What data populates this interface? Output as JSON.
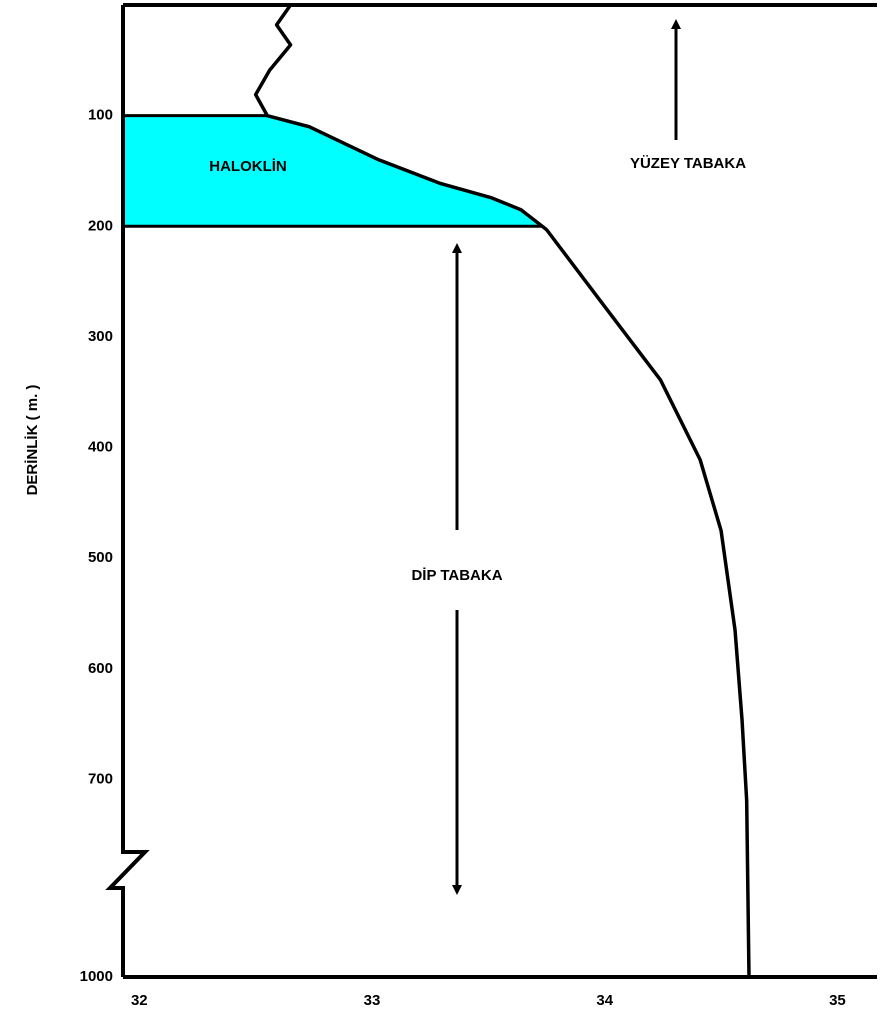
{
  "chart_data": {
    "type": "line",
    "y_axis_label": "DERİNLİK ( m. )",
    "series": [
      {
        "color": "#000000",
        "x": [
          32.65,
          32.59,
          32.65,
          32.56,
          32.5,
          32.55,
          32.73,
          33.03,
          33.29,
          33.51,
          33.64,
          33.75,
          33.98,
          34.24,
          34.41,
          34.5,
          34.56,
          34.59,
          34.61,
          34.62
        ],
        "values": [
          0,
          18,
          36,
          59,
          81,
          100,
          110,
          140,
          161,
          174,
          185,
          203,
          267,
          339,
          411,
          475,
          565,
          646,
          719,
          1000
        ]
      }
    ],
    "xlim": [
      31.93,
      35.17
    ],
    "xticks": [
      32,
      33,
      34,
      35
    ],
    "ylim": [
      0,
      1000
    ],
    "y_inverted": true,
    "y_break": 770,
    "yticks": [
      100,
      200,
      300,
      400,
      500,
      600,
      700,
      1000
    ],
    "halocline": {
      "label": "HALOKLİN",
      "depth_range": [
        100,
        200
      ],
      "color": "#00ffff"
    },
    "annotations": [
      "YÜZEY TABAKA",
      "DİP TABAKA"
    ]
  }
}
